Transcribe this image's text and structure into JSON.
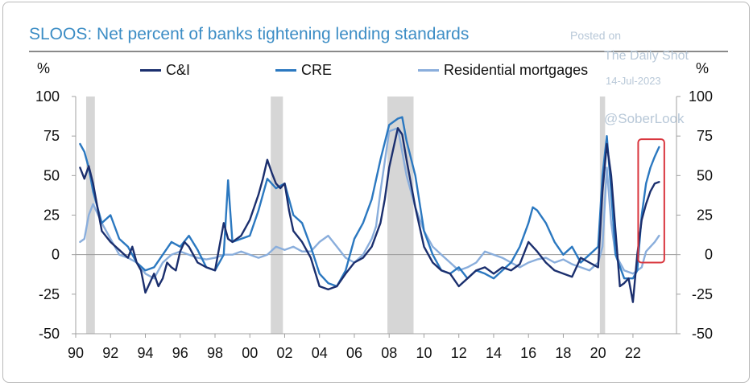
{
  "chart_data": {
    "type": "line",
    "title": "SLOOS: Net percent of banks tightening lending standards",
    "ylabel_left": "%",
    "ylabel_right": "%",
    "ylim": [
      -50,
      100
    ],
    "yticks": [
      100,
      75,
      50,
      25,
      0,
      -25,
      -50
    ],
    "xlim": [
      1990,
      2024.5
    ],
    "xticks": [
      {
        "x": 1990,
        "label": "90"
      },
      {
        "x": 1992,
        "label": "92"
      },
      {
        "x": 1994,
        "label": "94"
      },
      {
        "x": 1996,
        "label": "96"
      },
      {
        "x": 1998,
        "label": "98"
      },
      {
        "x": 2000,
        "label": "00"
      },
      {
        "x": 2002,
        "label": "02"
      },
      {
        "x": 2004,
        "label": "04"
      },
      {
        "x": 2006,
        "label": "06"
      },
      {
        "x": 2008,
        "label": "08"
      },
      {
        "x": 2010,
        "label": "10"
      },
      {
        "x": 2012,
        "label": "12"
      },
      {
        "x": 2014,
        "label": "14"
      },
      {
        "x": 2016,
        "label": "16"
      },
      {
        "x": 2018,
        "label": "18"
      },
      {
        "x": 2020,
        "label": "20"
      },
      {
        "x": 2022,
        "label": "22"
      }
    ],
    "recessions": [
      [
        1990.6,
        1991.1
      ],
      [
        2001.2,
        2001.9
      ],
      [
        2007.9,
        2009.4
      ],
      [
        2020.1,
        2020.4
      ]
    ],
    "highlight": {
      "x": [
        2022.3,
        2023.8
      ],
      "y": [
        -5,
        73
      ],
      "color": "#d9363e"
    },
    "series": [
      {
        "name": "C&I",
        "color": "#1b2f6e",
        "x": [
          1990.25,
          1990.5,
          1990.75,
          1991.0,
          1991.25,
          1991.5,
          1992.0,
          1992.5,
          1993.0,
          1993.25,
          1993.5,
          1993.75,
          1994.0,
          1994.25,
          1994.5,
          1994.75,
          1995.0,
          1995.25,
          1995.5,
          1995.75,
          1996.0,
          1996.25,
          1996.5,
          1997.0,
          1997.5,
          1998.0,
          1998.25,
          1998.5,
          1998.75,
          1999.0,
          1999.5,
          2000.0,
          2000.5,
          2000.75,
          2001.0,
          2001.25,
          2001.5,
          2001.75,
          2002.0,
          2002.25,
          2002.5,
          2003.0,
          2003.5,
          2004.0,
          2004.5,
          2005.0,
          2005.5,
          2006.0,
          2006.5,
          2007.0,
          2007.5,
          2007.75,
          2008.0,
          2008.5,
          2008.75,
          2009.0,
          2009.5,
          2010.0,
          2010.5,
          2011.0,
          2011.5,
          2012.0,
          2012.5,
          2013.0,
          2013.5,
          2014.0,
          2014.5,
          2015.0,
          2015.5,
          2016.0,
          2016.5,
          2017.0,
          2017.5,
          2018.0,
          2018.5,
          2019.0,
          2019.5,
          2020.0,
          2020.25,
          2020.5,
          2020.75,
          2021.0,
          2021.25,
          2021.5,
          2021.75,
          2022.0,
          2022.25,
          2022.5,
          2022.75,
          2023.0,
          2023.25,
          2023.5
        ],
        "y": [
          55,
          48,
          56,
          45,
          30,
          15,
          8,
          3,
          -2,
          5,
          -5,
          -10,
          -24,
          -18,
          -12,
          -20,
          -15,
          -5,
          -8,
          -10,
          2,
          8,
          5,
          -5,
          -8,
          -10,
          5,
          20,
          10,
          8,
          12,
          22,
          38,
          48,
          60,
          52,
          45,
          42,
          45,
          28,
          15,
          8,
          -2,
          -20,
          -22,
          -20,
          -12,
          -5,
          -2,
          5,
          20,
          35,
          55,
          80,
          76,
          60,
          30,
          5,
          -5,
          -10,
          -12,
          -20,
          -15,
          -10,
          -8,
          -12,
          -8,
          -10,
          -6,
          8,
          2,
          -5,
          -10,
          -12,
          -14,
          -2,
          -5,
          -8,
          40,
          70,
          50,
          15,
          -20,
          -18,
          -15,
          -30,
          0,
          22,
          32,
          40,
          45,
          46
        ]
      },
      {
        "name": "CRE",
        "color": "#2b78c0",
        "x": [
          1990.25,
          1990.5,
          1990.75,
          1991.0,
          1991.25,
          1991.5,
          1992.0,
          1992.5,
          1993.0,
          1993.5,
          1994.0,
          1994.5,
          1995.0,
          1995.5,
          1996.0,
          1996.5,
          1997.0,
          1997.5,
          1998.0,
          1998.5,
          1998.75,
          1999.0,
          1999.5,
          2000.0,
          2000.5,
          2001.0,
          2001.5,
          2002.0,
          2002.5,
          2003.0,
          2003.5,
          2004.0,
          2004.5,
          2005.0,
          2005.5,
          2006.0,
          2006.5,
          2007.0,
          2007.5,
          2008.0,
          2008.5,
          2008.75,
          2009.0,
          2009.5,
          2010.0,
          2010.5,
          2011.0,
          2011.5,
          2012.0,
          2012.5,
          2013.0,
          2013.5,
          2014.0,
          2014.5,
          2015.0,
          2015.5,
          2016.0,
          2016.25,
          2016.5,
          2017.0,
          2017.5,
          2018.0,
          2018.5,
          2019.0,
          2019.5,
          2020.0,
          2020.25,
          2020.5,
          2020.75,
          2021.0,
          2021.5,
          2022.0,
          2022.25,
          2022.5,
          2022.75,
          2023.0,
          2023.25,
          2023.5
        ],
        "y": [
          70,
          65,
          55,
          40,
          30,
          20,
          25,
          10,
          5,
          -5,
          -10,
          -8,
          0,
          8,
          5,
          12,
          3,
          -8,
          -10,
          0,
          47,
          8,
          10,
          12,
          28,
          48,
          42,
          45,
          25,
          20,
          5,
          -12,
          -18,
          -20,
          -10,
          10,
          20,
          35,
          60,
          82,
          86,
          87,
          72,
          50,
          15,
          0,
          -10,
          -12,
          -8,
          -15,
          -10,
          -12,
          -15,
          -10,
          -5,
          5,
          20,
          30,
          28,
          20,
          8,
          0,
          5,
          -5,
          0,
          5,
          50,
          75,
          40,
          0,
          -15,
          -15,
          -10,
          25,
          45,
          55,
          62,
          68
        ]
      },
      {
        "name": "Residential mortgages",
        "color": "#8aaedc",
        "x": [
          1990.25,
          1990.5,
          1990.75,
          1991.0,
          1991.5,
          1992.0,
          1992.5,
          1993.0,
          1993.5,
          1994.0,
          1994.5,
          1995.0,
          1995.5,
          1996.0,
          1996.5,
          1997.0,
          1997.5,
          1998.0,
          1998.5,
          1999.0,
          1999.5,
          2000.0,
          2000.5,
          2001.0,
          2001.5,
          2002.0,
          2002.5,
          2003.0,
          2003.5,
          2004.0,
          2004.5,
          2005.0,
          2005.5,
          2006.0,
          2006.5,
          2007.0,
          2007.25,
          2007.5,
          2008.0,
          2008.5,
          2008.75,
          2009.0,
          2009.5,
          2010.0,
          2010.5,
          2011.0,
          2011.5,
          2012.0,
          2012.5,
          2013.0,
          2013.5,
          2014.0,
          2014.5,
          2015.0,
          2015.5,
          2016.0,
          2016.5,
          2017.0,
          2017.5,
          2018.0,
          2018.5,
          2019.0,
          2019.5,
          2020.0,
          2020.25,
          2020.5,
          2020.75,
          2021.0,
          2021.5,
          2022.0,
          2022.5,
          2022.75,
          2023.0,
          2023.25,
          2023.5
        ],
        "y": [
          8,
          10,
          25,
          32,
          20,
          10,
          0,
          -2,
          -5,
          -12,
          -15,
          -5,
          0,
          2,
          0,
          -2,
          -3,
          -2,
          0,
          0,
          2,
          0,
          -2,
          0,
          5,
          3,
          5,
          2,
          2,
          8,
          12,
          5,
          -2,
          -5,
          0,
          10,
          18,
          40,
          78,
          80,
          65,
          50,
          30,
          15,
          5,
          0,
          -5,
          -10,
          -8,
          -5,
          2,
          0,
          -2,
          -5,
          -8,
          -5,
          -3,
          -2,
          -5,
          -3,
          -6,
          -8,
          -10,
          -5,
          5,
          55,
          20,
          0,
          -10,
          -12,
          -8,
          2,
          5,
          8,
          12
        ]
      }
    ]
  }
}
